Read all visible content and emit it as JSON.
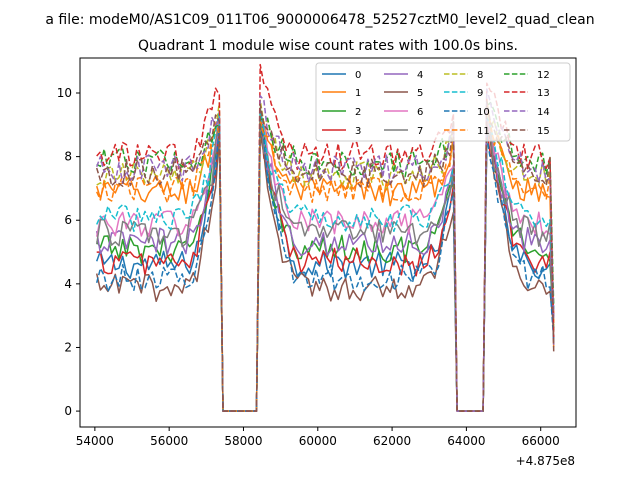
{
  "figure": {
    "suptitle": "a file: modeM0/AS1C09_011T06_9000006478_52527cztM0_level2_quad_clean",
    "title": "Quadrant 1 module wise count rates with 100.0s bins.",
    "x_offset_label": "+4.875e8"
  },
  "chart_data": {
    "type": "line",
    "title": "Quadrant 1 module wise count rates with 100.0s bins.",
    "xlabel": "",
    "ylabel": "",
    "x_offset": 487500000,
    "xlim": [
      53600,
      66950
    ],
    "ylim": [
      -0.5,
      11.1
    ],
    "xticks": [
      54000,
      56000,
      58000,
      60000,
      62000,
      64000,
      66000
    ],
    "yticks": [
      0,
      2,
      4,
      6,
      8,
      10
    ],
    "grid": false,
    "legend_location": "upper-right",
    "legend_columns": 4,
    "gaps": [
      {
        "start": 57350,
        "end": 58450
      },
      {
        "start": 63650,
        "end": 64550
      }
    ],
    "time_range": [
      54050,
      66350
    ],
    "series": [
      {
        "name": "0",
        "color": "#1f77b4",
        "style": "solid",
        "base": 4.6,
        "spike": 9.2
      },
      {
        "name": "1",
        "color": "#ff7f0e",
        "style": "solid",
        "base": 6.9,
        "spike": 9.4
      },
      {
        "name": "2",
        "color": "#2ca02c",
        "style": "solid",
        "base": 5.1,
        "spike": 9.1
      },
      {
        "name": "3",
        "color": "#d62728",
        "style": "solid",
        "base": 4.7,
        "spike": 9.0
      },
      {
        "name": "4",
        "color": "#9467bd",
        "style": "solid",
        "base": 5.3,
        "spike": 9.2
      },
      {
        "name": "5",
        "color": "#8c564b",
        "style": "solid",
        "base": 3.9,
        "spike": 8.8
      },
      {
        "name": "6",
        "color": "#e377c2",
        "style": "solid",
        "base": 5.9,
        "spike": 9.3
      },
      {
        "name": "7",
        "color": "#7f7f7f",
        "style": "solid",
        "base": 5.6,
        "spike": 9.0
      },
      {
        "name": "8",
        "color": "#bcbd22",
        "style": "dashed",
        "base": 7.4,
        "spike": 9.5
      },
      {
        "name": "9",
        "color": "#17becf",
        "style": "dashed",
        "base": 6.1,
        "spike": 9.3
      },
      {
        "name": "10",
        "color": "#1f77b4",
        "style": "dashed",
        "base": 4.2,
        "spike": 9.0
      },
      {
        "name": "11",
        "color": "#ff7f0e",
        "style": "dashed",
        "base": 7.0,
        "spike": 9.4
      },
      {
        "name": "12",
        "color": "#2ca02c",
        "style": "dashed",
        "base": 7.8,
        "spike": 9.6
      },
      {
        "name": "13",
        "color": "#d62728",
        "style": "dashed",
        "base": 8.0,
        "spike": 10.6
      },
      {
        "name": "14",
        "color": "#9467bd",
        "style": "dashed",
        "base": 7.6,
        "spike": 9.8
      },
      {
        "name": "15",
        "color": "#8c564b",
        "style": "dashed",
        "base": 7.5,
        "spike": 9.7
      }
    ]
  }
}
